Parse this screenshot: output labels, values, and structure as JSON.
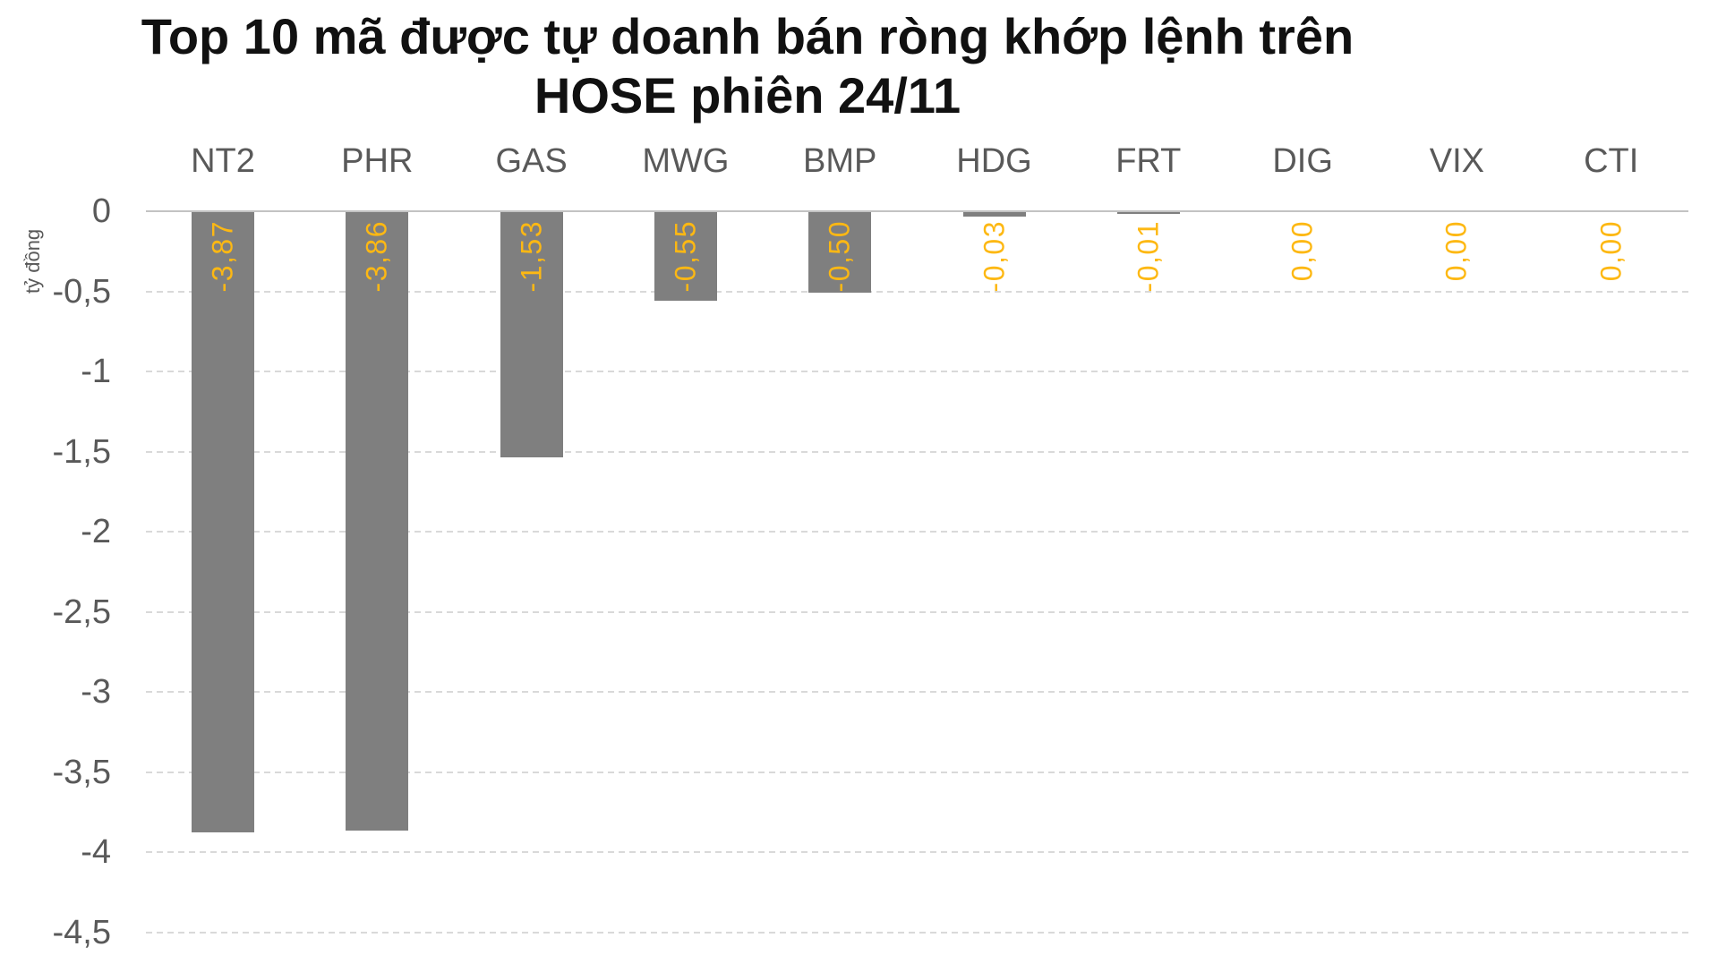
{
  "title": {
    "line1": "Top 10 mã được tự doanh bán ròng khớp lệnh trên",
    "line2": "HOSE phiên 24/11"
  },
  "y_axis_title": "tỷ đồng",
  "colors": {
    "bar": "#7f7f7f",
    "value_label": "#fdb813",
    "axis_text": "#595959",
    "title_text": "#111111",
    "gridline": "#d9d9d9",
    "zero_line": "#c3c3c3",
    "background": "#ffffff"
  },
  "chart_data": {
    "type": "bar",
    "title": "Top 10 mã được tự doanh bán ròng khớp lệnh trên HOSE phiên 24/11",
    "categories": [
      "NT2",
      "PHR",
      "GAS",
      "MWG",
      "BMP",
      "HDG",
      "FRT",
      "DIG",
      "VIX",
      "CTI"
    ],
    "values": [
      -3.87,
      -3.86,
      -1.53,
      -0.55,
      -0.5,
      -0.03,
      -0.01,
      0,
      0,
      0
    ],
    "value_labels": [
      "-3,87",
      "-3,86",
      "-1,53",
      "-0,55",
      "-0,50",
      "-0,03",
      "-0,01",
      "0,00",
      "0,00",
      "0,00"
    ],
    "xlabel": "",
    "ylabel": "tỷ đồng",
    "ylim": [
      -4.5,
      0
    ],
    "yticks": [
      0,
      -0.5,
      -1,
      -1.5,
      -2,
      -2.5,
      -3,
      -3.5,
      -4,
      -4.5
    ],
    "ytick_labels": [
      "0",
      "-0,5",
      "-1",
      "-1,5",
      "-2",
      "-2,5",
      "-3",
      "-3,5",
      "-4",
      "-4,5"
    ],
    "grid": "horizontal-dashed",
    "legend_position": "none",
    "bar_direction": "negative-down",
    "value_label_style": "rotated-90-ccw, gold, at top of bar below axis",
    "category_label_position": "above-plot"
  }
}
